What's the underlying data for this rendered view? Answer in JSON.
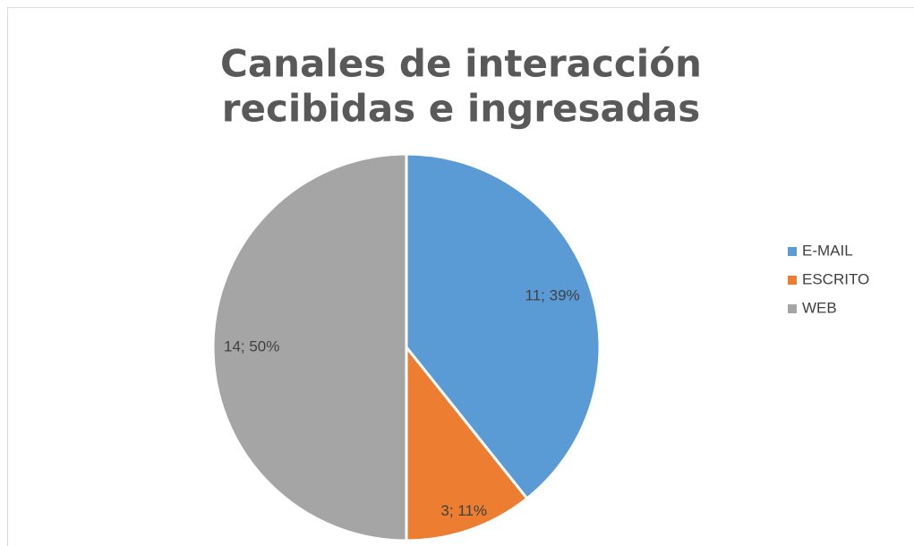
{
  "chart_data": {
    "type": "pie",
    "title": [
      "Canales de interacción",
      "recibidas e ingresadas"
    ],
    "categories": [
      "E-MAIL",
      "ESCRITO",
      "WEB"
    ],
    "values": [
      11,
      3,
      14
    ],
    "value_labels": [
      "11; 39%",
      "3; 11%",
      "14; 50%"
    ],
    "colors": [
      "#5b9bd5",
      "#ed7d31",
      "#a5a5a5"
    ],
    "legend": "right"
  }
}
